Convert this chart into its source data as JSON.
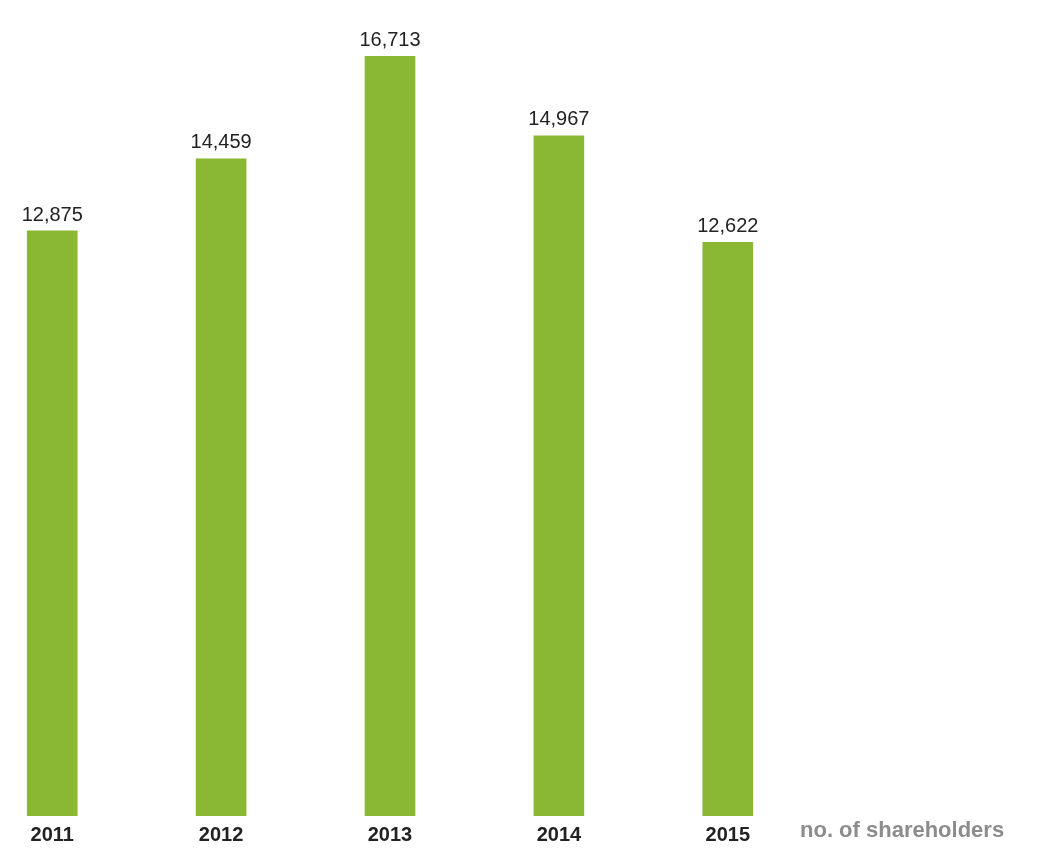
{
  "chart_data": {
    "type": "bar",
    "categories": [
      "2011",
      "2012",
      "2013",
      "2014",
      "2015"
    ],
    "values": [
      12875,
      14459,
      16713,
      14967,
      12622
    ],
    "value_labels": [
      "12,875",
      "14,459",
      "16,713",
      "14,967",
      "12,622"
    ],
    "color": "#8ab833",
    "annotations": [
      "no. of shareholders"
    ]
  }
}
